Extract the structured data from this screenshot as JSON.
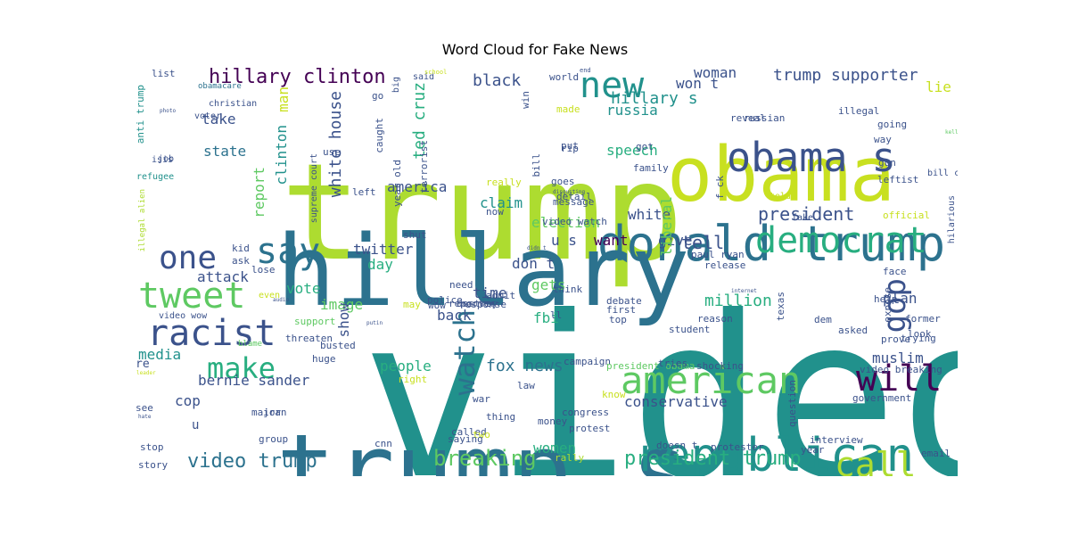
{
  "title": "Word Cloud for Fake News",
  "palette": [
    "#440154",
    "#3b528b",
    "#2c728e",
    "#21918c",
    "#28ae80",
    "#5ec962",
    "#addc30",
    "#fde725"
  ],
  "words": [
    {
      "text": "video",
      "color": "#21918c"
    },
    {
      "text": "trump",
      "color": "#addc30"
    },
    {
      "text": "hillary",
      "color": "#2c728e"
    },
    {
      "text": "trump s",
      "color": "#2c728e"
    },
    {
      "text": "obama",
      "color": "#c8e020"
    },
    {
      "text": "donald trump",
      "color": "#2c728e"
    },
    {
      "text": "republican",
      "color": "#21918c"
    },
    {
      "text": "obama s",
      "color": "#3b528b"
    },
    {
      "text": "american",
      "color": "#5ec962"
    },
    {
      "text": "democrat",
      "color": "#28ae80"
    },
    {
      "text": "new",
      "color": "#21918c"
    },
    {
      "text": "say",
      "color": "#2c728e"
    },
    {
      "text": "one",
      "color": "#3b528b"
    },
    {
      "text": "tweet",
      "color": "#5ec962"
    },
    {
      "text": "racist",
      "color": "#3b528b"
    },
    {
      "text": "make",
      "color": "#28ae80"
    },
    {
      "text": "will",
      "color": "#440154"
    },
    {
      "text": "call",
      "color": "#addc30"
    },
    {
      "text": "watch",
      "color": "#2c728e"
    },
    {
      "text": "gop",
      "color": "#3b528b"
    },
    {
      "text": "hillary clinton",
      "color": "#440154"
    },
    {
      "text": "trump supporter",
      "color": "#3b528b"
    },
    {
      "text": "black",
      "color": "#3b528b"
    },
    {
      "text": "president",
      "color": "#3b528b"
    },
    {
      "text": "breaking",
      "color": "#5ec962"
    },
    {
      "text": "president trump",
      "color": "#28ae80"
    },
    {
      "text": "video trump",
      "color": "#2c728e"
    },
    {
      "text": "fox news",
      "color": "#2c728e"
    },
    {
      "text": "hillary s",
      "color": "#21918c"
    },
    {
      "text": "white house",
      "color": "#3b528b"
    },
    {
      "text": "ted cruz",
      "color": "#28ae80"
    },
    {
      "text": "clinton",
      "color": "#21918c"
    },
    {
      "text": "tell",
      "color": "#3b528b"
    },
    {
      "text": "million",
      "color": "#28ae80"
    },
    {
      "text": "woman",
      "color": "#3b528b"
    },
    {
      "text": "won t",
      "color": "#3b528b"
    },
    {
      "text": "lie",
      "color": "#c8e020"
    },
    {
      "text": "take",
      "color": "#3b528b"
    },
    {
      "text": "state",
      "color": "#2c728e"
    },
    {
      "text": "man",
      "color": "#c8e020"
    },
    {
      "text": "america",
      "color": "#3b528b"
    },
    {
      "text": "russia",
      "color": "#21918c"
    },
    {
      "text": "speech",
      "color": "#28ae80"
    },
    {
      "text": "election",
      "color": "#5ec962"
    },
    {
      "text": "white",
      "color": "#3b528b"
    },
    {
      "text": "give",
      "color": "#3b528b"
    },
    {
      "text": "twitter",
      "color": "#3b528b"
    },
    {
      "text": "attack",
      "color": "#3b528b"
    },
    {
      "text": "vote",
      "color": "#28ae80"
    },
    {
      "text": "image",
      "color": "#5ec962"
    },
    {
      "text": "day",
      "color": "#28ae80"
    },
    {
      "text": "report",
      "color": "#5ec962"
    },
    {
      "text": "u s",
      "color": "#3b528b"
    },
    {
      "text": "want",
      "color": "#440154"
    },
    {
      "text": "don t",
      "color": "#3b528b"
    },
    {
      "text": "gets",
      "color": "#5ec962"
    },
    {
      "text": "liberal",
      "color": "#5ec962"
    },
    {
      "text": "plan",
      "color": "#3b528b"
    },
    {
      "text": "time",
      "color": "#3b528b"
    },
    {
      "text": "claim",
      "color": "#21918c"
    },
    {
      "text": "back",
      "color": "#3b528b"
    },
    {
      "text": "fbi",
      "color": "#28ae80"
    },
    {
      "text": "people",
      "color": "#28ae80"
    },
    {
      "text": "muslim",
      "color": "#3b528b"
    },
    {
      "text": "media",
      "color": "#21918c"
    },
    {
      "text": "bernie sander",
      "color": "#3b528b"
    },
    {
      "text": "conservative",
      "color": "#3b528b"
    },
    {
      "text": "cop",
      "color": "#3b528b"
    },
    {
      "text": "women",
      "color": "#28ae80"
    },
    {
      "text": "show",
      "color": "#3b528b"
    },
    {
      "text": "list",
      "color": "#3b528b"
    },
    {
      "text": "anti trump",
      "color": "#21918c"
    },
    {
      "text": "obamacare",
      "color": "#2c728e"
    },
    {
      "text": "christian",
      "color": "#3b528b"
    },
    {
      "text": "voter",
      "color": "#3b528b"
    },
    {
      "text": "isis",
      "color": "#3b528b"
    },
    {
      "text": "job",
      "color": "#3b528b"
    },
    {
      "text": "refugee",
      "color": "#21918c"
    },
    {
      "text": "illegal alien",
      "color": "#addc30"
    },
    {
      "text": "video wow",
      "color": "#3b528b"
    },
    {
      "text": "re",
      "color": "#3b528b"
    },
    {
      "text": "see",
      "color": "#3b528b"
    },
    {
      "text": "u",
      "color": "#3b528b"
    },
    {
      "text": "stop",
      "color": "#3b528b"
    },
    {
      "text": "story",
      "color": "#3b528b"
    },
    {
      "text": "kid",
      "color": "#3b528b"
    },
    {
      "text": "ask",
      "color": "#3b528b"
    },
    {
      "text": "lose",
      "color": "#3b528b"
    },
    {
      "text": "even",
      "color": "#c8e020"
    },
    {
      "text": "blame",
      "color": "#5ec962"
    },
    {
      "text": "support",
      "color": "#5ec962"
    },
    {
      "text": "threaten",
      "color": "#3b528b"
    },
    {
      "text": "huge",
      "color": "#3b528b"
    },
    {
      "text": "busted",
      "color": "#3b528b"
    },
    {
      "text": "major",
      "color": "#3b528b"
    },
    {
      "text": "group",
      "color": "#3b528b"
    },
    {
      "text": "iran",
      "color": "#3b528b"
    },
    {
      "text": "cnn",
      "color": "#3b528b"
    },
    {
      "text": "supreme court",
      "color": "#3b528b"
    },
    {
      "text": "use",
      "color": "#3b528b"
    },
    {
      "text": "caught",
      "color": "#3b528b"
    },
    {
      "text": "year old",
      "color": "#3b528b"
    },
    {
      "text": "left",
      "color": "#3b528b"
    },
    {
      "text": "terrorist",
      "color": "#3b528b"
    },
    {
      "text": "go",
      "color": "#3b528b"
    },
    {
      "text": "said",
      "color": "#3b528b"
    },
    {
      "text": "big",
      "color": "#3b528b"
    },
    {
      "text": "win",
      "color": "#3b528b"
    },
    {
      "text": "world",
      "color": "#3b528b"
    },
    {
      "text": "made",
      "color": "#c8e020"
    },
    {
      "text": "put",
      "color": "#3b528b"
    },
    {
      "text": "rip",
      "color": "#3b528b"
    },
    {
      "text": "bill",
      "color": "#3b528b"
    },
    {
      "text": "goes",
      "color": "#3b528b"
    },
    {
      "text": "detail",
      "color": "#3b528b"
    },
    {
      "text": "message",
      "color": "#3b528b"
    },
    {
      "text": "video watch",
      "color": "#3b528b"
    },
    {
      "text": "really",
      "color": "#c8e020"
    },
    {
      "text": "now",
      "color": "#3b528b"
    },
    {
      "text": "shut",
      "color": "#3b528b"
    },
    {
      "text": "got",
      "color": "#3b528b"
    },
    {
      "text": "family",
      "color": "#3b528b"
    },
    {
      "text": "reveal",
      "color": "#3b528b"
    },
    {
      "text": "russian",
      "color": "#3b528b"
    },
    {
      "text": "illegal",
      "color": "#3b528b"
    },
    {
      "text": "going",
      "color": "#3b528b"
    },
    {
      "text": "way",
      "color": "#3b528b"
    },
    {
      "text": "gun",
      "color": "#3b528b"
    },
    {
      "text": "leftist",
      "color": "#3b528b"
    },
    {
      "text": "official",
      "color": "#c8e020"
    },
    {
      "text": "bill clinton",
      "color": "#3b528b"
    },
    {
      "text": "f ck",
      "color": "#3b528b"
    },
    {
      "text": "told",
      "color": "#c8e020"
    },
    {
      "text": "fake",
      "color": "#3b528b"
    },
    {
      "text": "hilarious",
      "color": "#3b528b"
    },
    {
      "text": "paul ryan",
      "color": "#3b528b"
    },
    {
      "text": "release",
      "color": "#3b528b"
    },
    {
      "text": "face",
      "color": "#3b528b"
    },
    {
      "text": "help",
      "color": "#3b528b"
    },
    {
      "text": "expose",
      "color": "#3b528b"
    },
    {
      "text": "reason",
      "color": "#3b528b"
    },
    {
      "text": "texas",
      "color": "#3b528b"
    },
    {
      "text": "dem",
      "color": "#3b528b"
    },
    {
      "text": "former",
      "color": "#3b528b"
    },
    {
      "text": "asked",
      "color": "#3b528b"
    },
    {
      "text": "prove",
      "color": "#3b528b"
    },
    {
      "text": "look",
      "color": "#3b528b"
    },
    {
      "text": "trying",
      "color": "#3b528b"
    },
    {
      "text": "debate",
      "color": "#3b528b"
    },
    {
      "text": "first",
      "color": "#3b528b"
    },
    {
      "text": "top",
      "color": "#3b528b"
    },
    {
      "text": "student",
      "color": "#3b528b"
    },
    {
      "text": "response",
      "color": "#3b528b"
    },
    {
      "text": "destroy",
      "color": "#3b528b"
    },
    {
      "text": "wow",
      "color": "#3b528b"
    },
    {
      "text": "may",
      "color": "#c8e020"
    },
    {
      "text": "need",
      "color": "#3b528b"
    },
    {
      "text": "admit",
      "color": "#3b528b"
    },
    {
      "text": "think",
      "color": "#3b528b"
    },
    {
      "text": "ll",
      "color": "#3b528b"
    },
    {
      "text": "police",
      "color": "#3b528b"
    },
    {
      "text": "reporter",
      "color": "#3b528b"
    },
    {
      "text": "campaign",
      "color": "#3b528b"
    },
    {
      "text": "president obama",
      "color": "#5ec962"
    },
    {
      "text": "tries",
      "color": "#3b528b"
    },
    {
      "text": "shocking",
      "color": "#3b528b"
    },
    {
      "text": "video breaking",
      "color": "#3b528b"
    },
    {
      "text": "question",
      "color": "#3b528b"
    },
    {
      "text": "government",
      "color": "#3b528b"
    },
    {
      "text": "right",
      "color": "#c8e020"
    },
    {
      "text": "law",
      "color": "#3b528b"
    },
    {
      "text": "war",
      "color": "#3b528b"
    },
    {
      "text": "know",
      "color": "#c8e020"
    },
    {
      "text": "congress",
      "color": "#3b528b"
    },
    {
      "text": "thing",
      "color": "#3b528b"
    },
    {
      "text": "money",
      "color": "#3b528b"
    },
    {
      "text": "protest",
      "color": "#3b528b"
    },
    {
      "text": "called",
      "color": "#3b528b"
    },
    {
      "text": "two",
      "color": "#c8e020"
    },
    {
      "text": "saying",
      "color": "#3b528b"
    },
    {
      "text": "doesn t",
      "color": "#3b528b"
    },
    {
      "text": "protester",
      "color": "#3b528b"
    },
    {
      "text": "interview",
      "color": "#3b528b"
    },
    {
      "text": "year",
      "color": "#3b528b"
    },
    {
      "text": "rally",
      "color": "#addc30"
    },
    {
      "text": "email",
      "color": "#3b528b"
    },
    {
      "text": "end",
      "color": "#3b528b"
    },
    {
      "text": "school",
      "color": "#c8e020"
    },
    {
      "text": "photo",
      "color": "#3b528b"
    },
    {
      "text": "kellyanne conway",
      "color": "#5ec962"
    },
    {
      "text": "disgusting",
      "color": "#3b528b"
    },
    {
      "text": "didn t",
      "color": "#3b528b"
    },
    {
      "text": "internet",
      "color": "#3b528b"
    },
    {
      "text": "audio",
      "color": "#3b528b"
    },
    {
      "text": "putin",
      "color": "#3b528b"
    },
    {
      "text": "leader",
      "color": "#c8e020"
    },
    {
      "text": "hate",
      "color": "#3b528b"
    }
  ]
}
